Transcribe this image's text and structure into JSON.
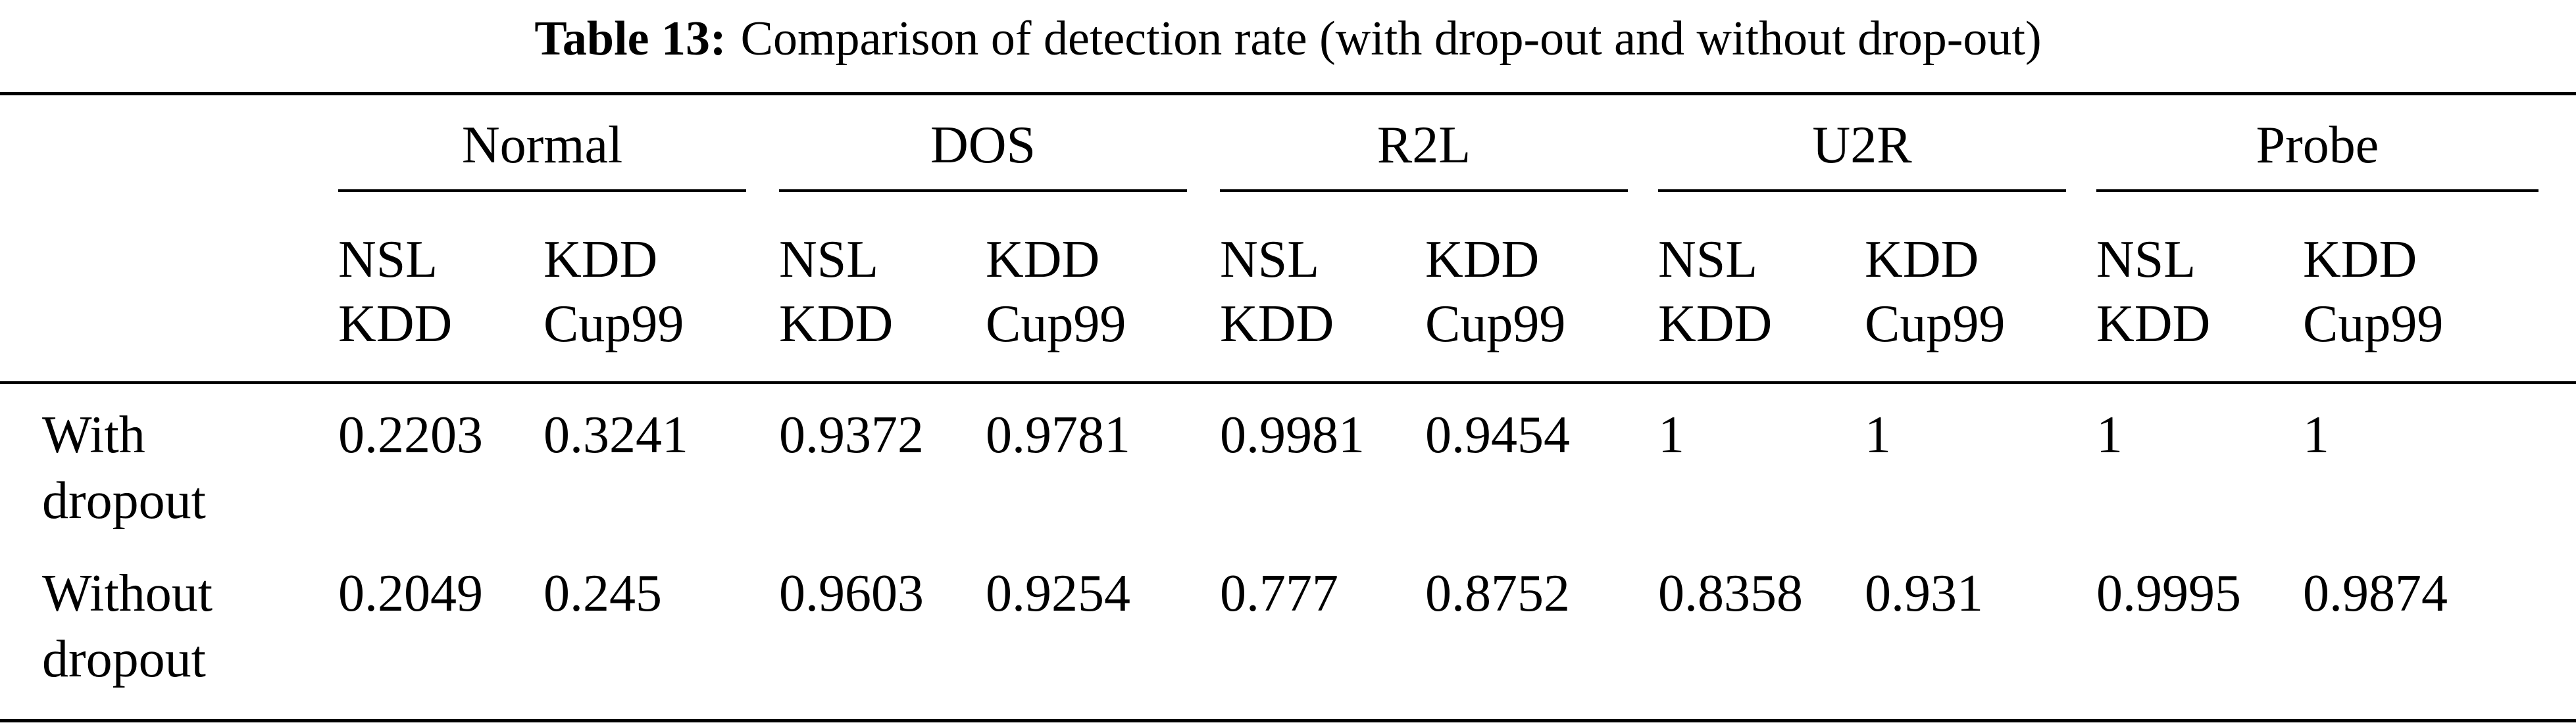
{
  "caption": {
    "label": "Table 13:",
    "text": "Comparison of detection rate (with drop-out and without drop-out)"
  },
  "groups": [
    "Normal",
    "DOS",
    "R2L",
    "U2R",
    "Probe"
  ],
  "subheaders": [
    "NSL\nKDD",
    "KDD\nCup99"
  ],
  "rows": [
    {
      "label": "With\ndropout",
      "values": [
        "0.2203",
        "0.3241",
        "0.9372",
        "0.9781",
        "0.9981",
        "0.9454",
        "1",
        "1",
        "1",
        "1"
      ]
    },
    {
      "label": "Without\ndropout",
      "values": [
        "0.2049",
        "0.245",
        "0.9603",
        "0.9254",
        "0.777",
        "0.8752",
        "0.8358",
        "0.931",
        "0.9995",
        "0.9874"
      ]
    }
  ]
}
